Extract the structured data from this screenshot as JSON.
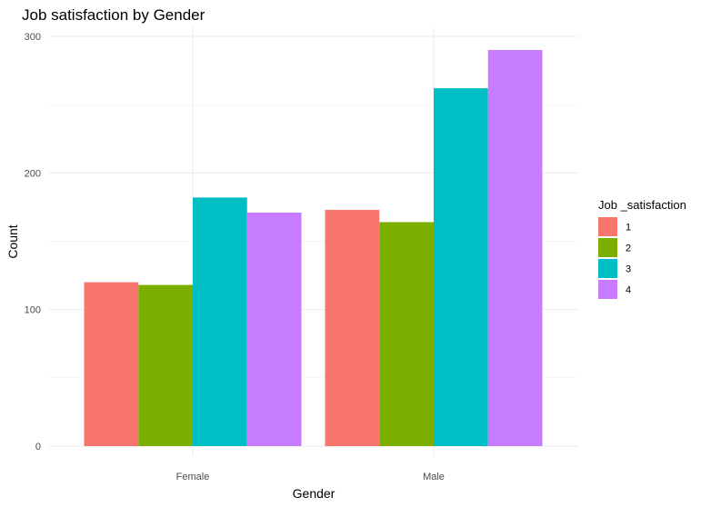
{
  "chart_data": {
    "type": "bar",
    "title": "Job satisfaction by Gender",
    "xlabel": "Gender",
    "ylabel": "Count",
    "categories": [
      "Female",
      "Male"
    ],
    "ylim": [
      0,
      300
    ],
    "yticks": [
      0,
      100,
      200,
      300
    ],
    "grid": true,
    "legend": {
      "title": "Job _satisfaction",
      "position": "right"
    },
    "series": [
      {
        "name": "1",
        "color": "#F8766D",
        "values": [
          120,
          173
        ]
      },
      {
        "name": "2",
        "color": "#7CAE00",
        "values": [
          118,
          164
        ]
      },
      {
        "name": "3",
        "color": "#00BFC4",
        "values": [
          182,
          262
        ]
      },
      {
        "name": "4",
        "color": "#C77CFF",
        "values": [
          171,
          290
        ]
      }
    ]
  }
}
